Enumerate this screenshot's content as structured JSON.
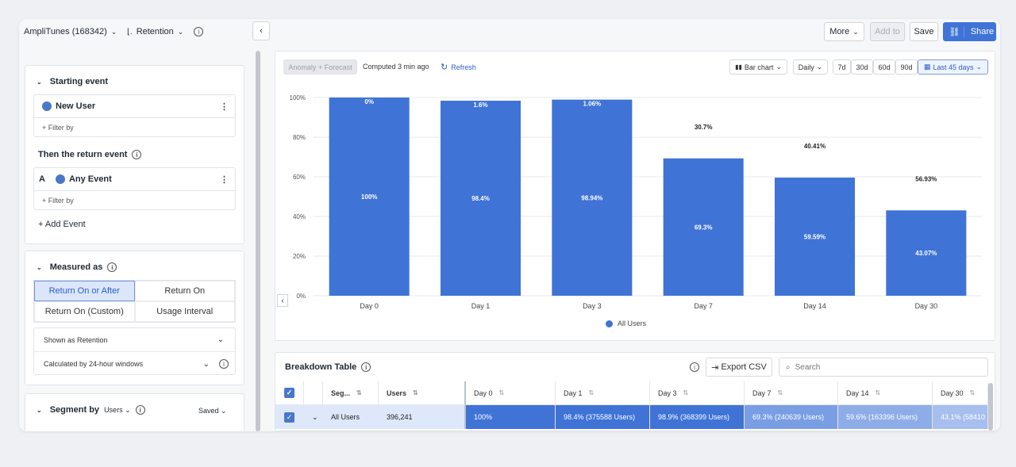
{
  "header": {
    "project": "AmpliTunes (168342)",
    "chart_kind": "Retention",
    "more_label": "More",
    "add_to_label": "Add to",
    "save_label": "Save",
    "share_label": "Share"
  },
  "sidebar": {
    "starting_event_title": "Starting event",
    "starting_event": "New User",
    "filter_label": "+ Filter by",
    "return_event_title": "Then the return event",
    "return_event_letter": "A",
    "return_event": "Any Event",
    "add_event_label": "+ Add Event",
    "measured_title": "Measured as",
    "measure_options": [
      "Return On or After",
      "Return On",
      "Return On (Custom)",
      "Usage Interval"
    ],
    "shown_as": "Shown as Retention",
    "calculated_by": "Calculated by 24-hour windows",
    "segment_title": "Segment by",
    "segment_type": "Users",
    "saved_label": "Saved"
  },
  "chart_toolbar": {
    "anomaly_label": "Anomaly + Forecast",
    "computed_label": "Computed 3 min ago",
    "refresh_label": "Refresh",
    "chart_type": "Bar chart",
    "interval": "Daily",
    "ranges": [
      "7d",
      "30d",
      "60d",
      "90d"
    ],
    "active_range": "Last 45 days"
  },
  "chart_data": {
    "type": "bar",
    "categories": [
      "Day 0",
      "Day 1",
      "Day 3",
      "Day 7",
      "Day 14",
      "Day 30"
    ],
    "values": [
      100,
      98.4,
      98.94,
      69.3,
      59.59,
      43.07
    ],
    "bar_labels": [
      "100%",
      "98.4%",
      "98.94%",
      "69.3%",
      "59.59%",
      "43.07%"
    ],
    "dropoff_labels": [
      "0%",
      "1.6%",
      "1.06%",
      "30.7%",
      "40.41%",
      "56.93%"
    ],
    "yticks": [
      "0%",
      "20%",
      "40%",
      "60%",
      "80%",
      "100%"
    ],
    "ylim": [
      0,
      100
    ],
    "legend": [
      "All Users"
    ],
    "colors": {
      "bar": "#3f73d6"
    }
  },
  "table": {
    "title": "Breakdown Table",
    "export_label": "Export CSV",
    "search_placeholder": "Search",
    "columns": [
      "Seg...",
      "Users",
      "Day 0",
      "Day 1",
      "Day 3",
      "Day 7",
      "Day 14",
      "Day 30"
    ],
    "row": {
      "segment": "All Users",
      "users": "396,241",
      "cells": [
        "100%",
        "98.4% (375588 Users)",
        "98.9% (368399 Users)",
        "69.3% (240639 Users)",
        "59.6% (163396 Users)",
        "43.1% (58410"
      ]
    }
  }
}
